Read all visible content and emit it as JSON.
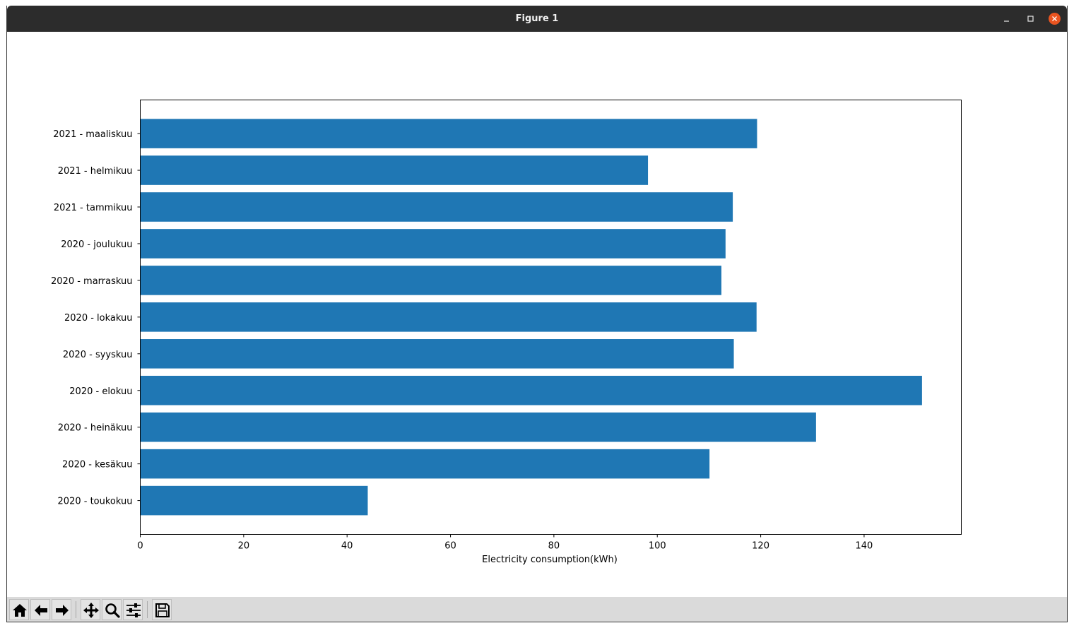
{
  "window": {
    "title": "Figure 1"
  },
  "toolbar": {
    "buttons": [
      {
        "name": "home-button",
        "icon": "home-icon"
      },
      {
        "name": "back-button",
        "icon": "arrow-left-icon"
      },
      {
        "name": "forward-button",
        "icon": "arrow-right-icon"
      },
      {
        "name": "pan-button",
        "icon": "move-arrows-icon"
      },
      {
        "name": "zoom-button",
        "icon": "magnifier-icon"
      },
      {
        "name": "configure-subplots-button",
        "icon": "sliders-icon"
      },
      {
        "name": "save-button",
        "icon": "floppy-disk-icon"
      }
    ]
  },
  "colors": {
    "bar": "#1f77b4",
    "titlebar": "#2c2c2c",
    "close": "#e95420",
    "toolbar": "#dadada"
  },
  "chart_data": {
    "type": "bar",
    "orientation": "horizontal",
    "categories": [
      "2020 - toukokuu",
      "2020 - kesäkuu",
      "2020 - heinäkuu",
      "2020 - elokuu",
      "2020 - syyskuu",
      "2020 - lokakuu",
      "2020 - marraskuu",
      "2020 - joulukuu",
      "2021 - tammikuu",
      "2021 - helmikuu",
      "2021 - maaliskuu"
    ],
    "values": [
      44,
      110.1,
      130.7,
      151.2,
      114.8,
      119.2,
      112.4,
      113.2,
      114.6,
      98.2,
      119.3
    ],
    "xlabel": "Electricity consumption(kWh)",
    "ylabel": "",
    "title": "",
    "xlim": [
      0,
      158.8
    ],
    "xticks": [
      0,
      20,
      40,
      60,
      80,
      100,
      120,
      140
    ],
    "grid": false
  }
}
